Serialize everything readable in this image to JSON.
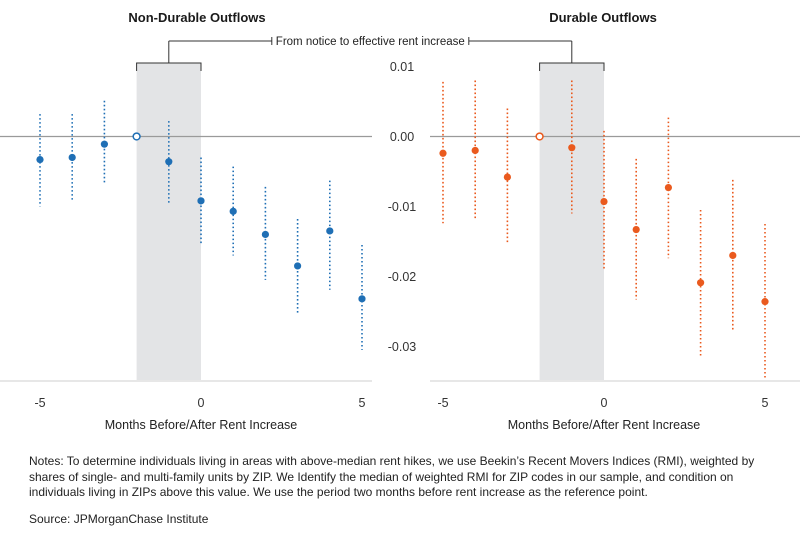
{
  "bracket_label": "From notice to effective rent increase",
  "notes": "Notes: To determine individuals living in areas with above-median rent hikes, we use Beekin’s Recent Movers Indices (RMI), weighted by shares of single- and multi-family units by ZIP. We Identify the median of weighted RMI for ZIP codes in our sample, and condition on individuals living in ZIPs above this value. We use the period two months before rent increase as the reference point.",
  "source": "Source: JPMorganChase Institute",
  "colors": {
    "blue": "#1f6fb5",
    "orange": "#ea5a1e",
    "shade": "#e3e4e6",
    "zero_line": "#9a9a9a"
  },
  "chart_data": [
    {
      "type": "scatter",
      "title": "Non-Durable Outflows",
      "xlabel": "Months Before/After Rent Increase",
      "ylabel": "",
      "x_ticks": [
        -5,
        0,
        5
      ],
      "y_ticks": [
        0.01,
        0.0,
        -0.01,
        -0.02,
        -0.03
      ],
      "y_tick_labels": [
        "0.01",
        "0.00",
        "-0.01",
        "-0.02",
        "-0.03"
      ],
      "xlim": [
        -5.2,
        5.2
      ],
      "ylim": [
        -0.0348,
        0.0105
      ],
      "shaded_region": [
        -2,
        0
      ],
      "reference_point": -2,
      "color": "blue",
      "points": [
        {
          "x": -5,
          "y": -0.0033,
          "lo": -0.01,
          "hi": 0.0032
        },
        {
          "x": -4,
          "y": -0.003,
          "lo": -0.0093,
          "hi": 0.0032
        },
        {
          "x": -3,
          "y": -0.0011,
          "lo": -0.0068,
          "hi": 0.0051
        },
        {
          "x": -2,
          "y": 0.0,
          "lo": null,
          "hi": null
        },
        {
          "x": -1,
          "y": -0.0036,
          "lo": -0.0095,
          "hi": 0.0022
        },
        {
          "x": 0,
          "y": -0.0092,
          "lo": -0.0155,
          "hi": -0.003
        },
        {
          "x": 1,
          "y": -0.0107,
          "lo": -0.017,
          "hi": -0.0043
        },
        {
          "x": 2,
          "y": -0.014,
          "lo": -0.0205,
          "hi": -0.0072
        },
        {
          "x": 3,
          "y": -0.0185,
          "lo": -0.0253,
          "hi": -0.0118
        },
        {
          "x": 4,
          "y": -0.0135,
          "lo": -0.0219,
          "hi": -0.0063
        },
        {
          "x": 5,
          "y": -0.0232,
          "lo": -0.0305,
          "hi": -0.0155
        }
      ]
    },
    {
      "type": "scatter",
      "title": "Durable Outflows",
      "xlabel": "Months Before/After Rent Increase",
      "ylabel": "",
      "x_ticks": [
        -5,
        0,
        5
      ],
      "xlim": [
        -5.2,
        5.2
      ],
      "ylim": [
        -0.0348,
        0.0105
      ],
      "shaded_region": [
        -2,
        0
      ],
      "reference_point": -2,
      "color": "orange",
      "points": [
        {
          "x": -5,
          "y": -0.0024,
          "lo": -0.0124,
          "hi": 0.0078
        },
        {
          "x": -4,
          "y": -0.002,
          "lo": -0.012,
          "hi": 0.008
        },
        {
          "x": -3,
          "y": -0.0058,
          "lo": -0.0152,
          "hi": 0.004
        },
        {
          "x": -2,
          "y": 0.0,
          "lo": null,
          "hi": null
        },
        {
          "x": -1,
          "y": -0.0016,
          "lo": -0.011,
          "hi": 0.008
        },
        {
          "x": 0,
          "y": -0.0093,
          "lo": -0.019,
          "hi": 0.0008
        },
        {
          "x": 1,
          "y": -0.0133,
          "lo": -0.0233,
          "hi": -0.0032
        },
        {
          "x": 2,
          "y": -0.0073,
          "lo": -0.0174,
          "hi": 0.0027
        },
        {
          "x": 3,
          "y": -0.0209,
          "lo": -0.0315,
          "hi": -0.0105
        },
        {
          "x": 4,
          "y": -0.017,
          "lo": -0.0277,
          "hi": -0.0062
        },
        {
          "x": 5,
          "y": -0.0236,
          "lo": -0.0348,
          "hi": -0.0125
        }
      ]
    }
  ]
}
